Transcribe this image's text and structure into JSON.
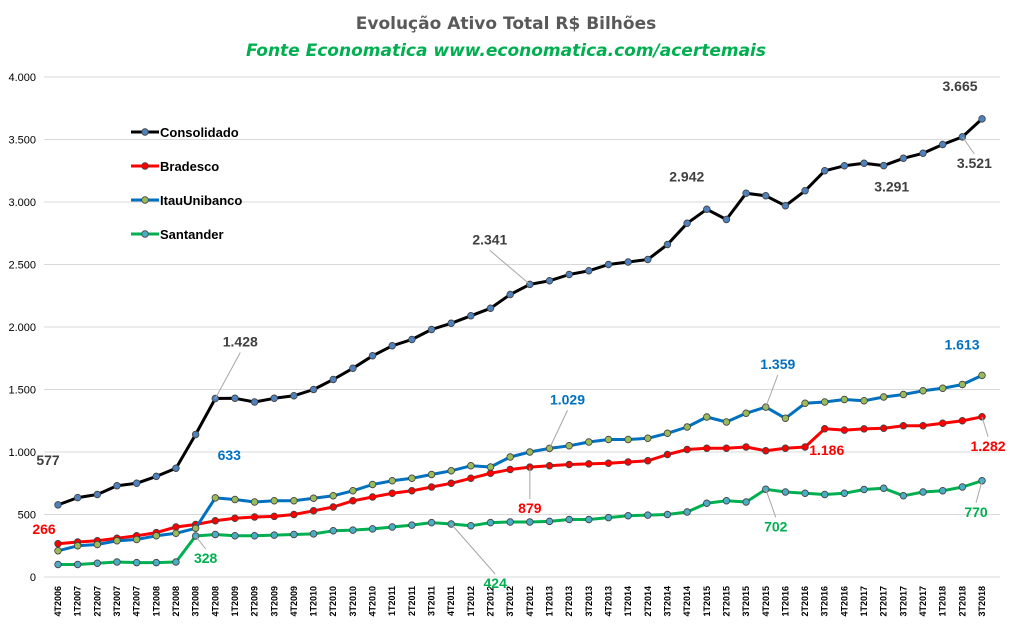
{
  "chart_data": {
    "type": "line",
    "title": "Evolução  Ativo Total R$ Bilhões",
    "subtitle": "Fonte Economatica www.economatica.com/acertemais",
    "subtitle_color": "#00B050",
    "ylim": [
      0,
      4000
    ],
    "yticks": [
      0,
      500,
      1000,
      1500,
      2000,
      2500,
      3000,
      3500,
      4000
    ],
    "ytick_labels": [
      "0",
      "500",
      "1.000",
      "1.500",
      "2.000",
      "2.500",
      "3.000",
      "3.500",
      "4.000"
    ],
    "grid": true,
    "legend_position": "top-left",
    "categories": [
      "4T2006",
      "1T2007",
      "2T2007",
      "3T2007",
      "4T2007",
      "1T2008",
      "2T2008",
      "3T2008",
      "4T2008",
      "1T2009",
      "2T2009",
      "3T2009",
      "4T2009",
      "1T2010",
      "2T2010",
      "3T2010",
      "4T2010",
      "1T2011",
      "2T2011",
      "3T2011",
      "4T2011",
      "1T2012",
      "2T2012",
      "3T2012",
      "4T2012",
      "1T2013",
      "2T2013",
      "3T2013",
      "4T2013",
      "1T2014",
      "2T2014",
      "3T2014",
      "4T2014",
      "1T2015",
      "2T2015",
      "3T2015",
      "4T2015",
      "1T2016",
      "2T2016",
      "3T2016",
      "4T2016",
      "1T2017",
      "2T2017",
      "3T2017",
      "4T2017",
      "1T2018",
      "2T2018",
      "3T2018"
    ],
    "series": [
      {
        "name": "Consolidado",
        "color": "#000000",
        "marker_color": "#4F81BD",
        "values": [
          577,
          635,
          660,
          730,
          750,
          805,
          870,
          1140,
          1428,
          1430,
          1400,
          1430,
          1450,
          1500,
          1580,
          1670,
          1770,
          1850,
          1900,
          1980,
          2030,
          2090,
          2150,
          2260,
          2341,
          2370,
          2420,
          2450,
          2500,
          2520,
          2540,
          2660,
          2830,
          2942,
          2860,
          3070,
          3050,
          2970,
          3090,
          3250,
          3290,
          3310,
          3291,
          3350,
          3390,
          3460,
          3521,
          3665
        ],
        "annotations": [
          {
            "index": 0,
            "label": "577"
          },
          {
            "index": 8,
            "label": "1.428"
          },
          {
            "index": 24,
            "label": "2.341"
          },
          {
            "index": 33,
            "label": "2.942"
          },
          {
            "index": 42,
            "label": "3.291"
          },
          {
            "index": 46,
            "label": "3.521"
          },
          {
            "index": 47,
            "label": "3.665"
          }
        ]
      },
      {
        "name": "Bradesco",
        "color": "#FF0000",
        "marker_color": "#FF0000",
        "values": [
          266,
          280,
          290,
          310,
          330,
          355,
          400,
          420,
          450,
          470,
          480,
          485,
          500,
          530,
          560,
          610,
          640,
          670,
          690,
          720,
          750,
          790,
          830,
          860,
          879,
          890,
          900,
          905,
          910,
          920,
          930,
          980,
          1020,
          1030,
          1030,
          1040,
          1010,
          1030,
          1040,
          1186,
          1175,
          1185,
          1190,
          1210,
          1210,
          1230,
          1250,
          1282
        ],
        "annotations": [
          {
            "index": 0,
            "label": "266"
          },
          {
            "index": 24,
            "label": "879"
          },
          {
            "index": 39,
            "label": "1.186"
          },
          {
            "index": 47,
            "label": "1.282"
          }
        ]
      },
      {
        "name": "ItauUnibanco",
        "color": "#0070C0",
        "marker_color": "#9BBB59",
        "values": [
          210,
          250,
          260,
          290,
          300,
          330,
          350,
          390,
          633,
          620,
          600,
          610,
          610,
          630,
          650,
          690,
          740,
          770,
          790,
          820,
          850,
          890,
          880,
          960,
          1000,
          1029,
          1050,
          1080,
          1100,
          1100,
          1110,
          1150,
          1200,
          1280,
          1240,
          1310,
          1359,
          1270,
          1390,
          1400,
          1420,
          1410,
          1440,
          1460,
          1490,
          1510,
          1540,
          1613
        ],
        "annotations": [
          {
            "index": 8,
            "label": "633"
          },
          {
            "index": 25,
            "label": "1.029"
          },
          {
            "index": 36,
            "label": "1.359"
          },
          {
            "index": 47,
            "label": "1.613"
          }
        ]
      },
      {
        "name": "Santander",
        "color": "#00B050",
        "marker_color": "#4BACC6",
        "values": [
          100,
          100,
          110,
          120,
          115,
          115,
          120,
          328,
          340,
          330,
          330,
          335,
          340,
          345,
          370,
          375,
          385,
          400,
          415,
          435,
          424,
          410,
          435,
          440,
          440,
          445,
          460,
          460,
          475,
          490,
          495,
          500,
          520,
          590,
          610,
          600,
          702,
          680,
          670,
          660,
          670,
          700,
          710,
          650,
          680,
          690,
          720,
          770
        ],
        "annotations": [
          {
            "index": 7,
            "label": "328"
          },
          {
            "index": 20,
            "label": "424"
          },
          {
            "index": 36,
            "label": "702"
          },
          {
            "index": 47,
            "label": "770"
          }
        ]
      }
    ]
  }
}
